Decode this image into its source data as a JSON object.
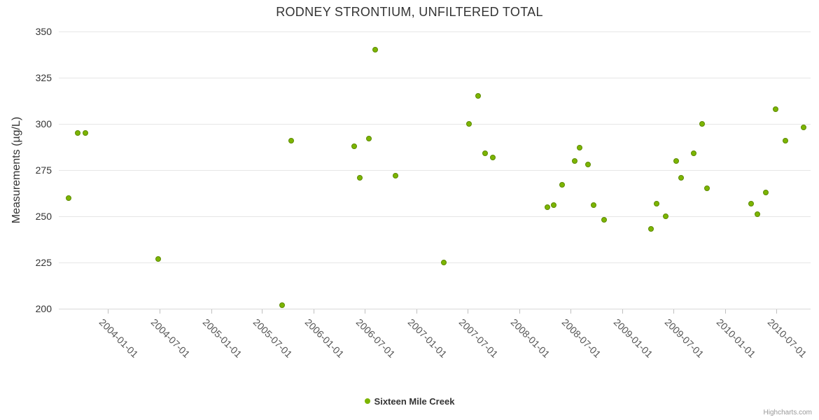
{
  "title": "RODNEY STRONTIUM, UNFILTERED TOTAL",
  "y_axis_title": "Measurements (µg/L)",
  "legend": {
    "label": "Sixteen Mile Creek"
  },
  "credits": "Highcharts.com",
  "colors": {
    "point_fill": "#7cb500",
    "point_border": "#5d8a00",
    "grid": "#e6e6e6",
    "axis_line": "#d8d8d8",
    "tick": "#c0c0c0"
  },
  "chart_data": {
    "type": "scatter",
    "title": "RODNEY STRONTIUM, UNFILTERED TOTAL",
    "xlabel": "",
    "ylabel": "Measurements (µg/L)",
    "ylim": [
      200,
      350
    ],
    "y_ticks": [
      200,
      225,
      250,
      275,
      300,
      325,
      350
    ],
    "x_ticks": [
      "2004-01-01",
      "2004-07-01",
      "2005-01-01",
      "2005-07-01",
      "2006-01-01",
      "2006-07-01",
      "2007-01-01",
      "2007-07-01",
      "2008-01-01",
      "2008-07-01",
      "2009-01-01",
      "2009-07-01",
      "2010-01-01",
      "2010-07-01"
    ],
    "x_range": [
      "2003-07-10",
      "2010-11-01"
    ],
    "grid": "horizontal",
    "legend_position": "bottom-center",
    "series": [
      {
        "name": "Sixteen Mile Creek",
        "color": "#7cb500",
        "points": [
          [
            "2003-08-15",
            260
          ],
          [
            "2003-09-15",
            295
          ],
          [
            "2003-10-12",
            295
          ],
          [
            "2004-06-27",
            227
          ],
          [
            "2005-09-10",
            202
          ],
          [
            "2005-10-13",
            291
          ],
          [
            "2006-05-25",
            288
          ],
          [
            "2006-06-14",
            271
          ],
          [
            "2006-07-16",
            292
          ],
          [
            "2006-08-07",
            340
          ],
          [
            "2006-10-19",
            272
          ],
          [
            "2007-04-08",
            225
          ],
          [
            "2007-07-07",
            300
          ],
          [
            "2007-08-08",
            315
          ],
          [
            "2007-09-02",
            284
          ],
          [
            "2007-09-29",
            282
          ],
          [
            "2008-04-10",
            255
          ],
          [
            "2008-05-03",
            256
          ],
          [
            "2008-06-02",
            267
          ],
          [
            "2008-07-16",
            280
          ],
          [
            "2008-08-03",
            287
          ],
          [
            "2008-09-02",
            278
          ],
          [
            "2008-09-21",
            256
          ],
          [
            "2008-10-29",
            248
          ],
          [
            "2009-04-13",
            243
          ],
          [
            "2009-05-03",
            257
          ],
          [
            "2009-06-05",
            250
          ],
          [
            "2009-07-12",
            280
          ],
          [
            "2009-07-29",
            271
          ],
          [
            "2009-09-12",
            284
          ],
          [
            "2009-10-12",
            300
          ],
          [
            "2009-10-29",
            265
          ],
          [
            "2010-04-04",
            257
          ],
          [
            "2010-04-27",
            251
          ],
          [
            "2010-05-26",
            263
          ],
          [
            "2010-06-30",
            308
          ],
          [
            "2010-08-04",
            291
          ],
          [
            "2010-10-08",
            298
          ]
        ]
      }
    ]
  }
}
